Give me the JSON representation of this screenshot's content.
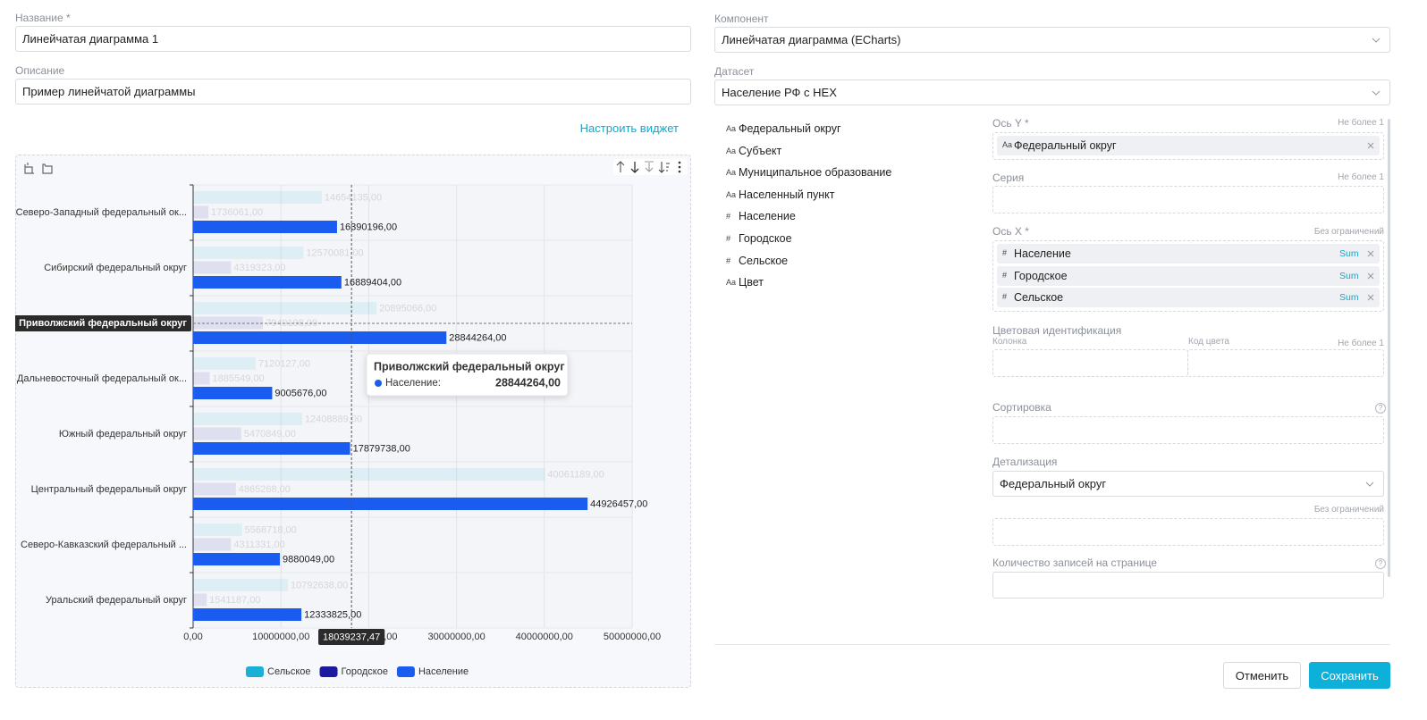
{
  "form": {
    "name_label": "Название *",
    "name_value": "Линейчатая диаграмма 1",
    "description_label": "Описание",
    "description_value": "Пример линейчатой диаграммы",
    "configure_link": "Настроить виджет"
  },
  "chart_data": {
    "type": "bar",
    "orientation": "horizontal",
    "categories": [
      "Северо-Западный федеральный ок...",
      "Сибирский федеральный округ",
      "Приволжский федеральный округ",
      "Дальневосточный федеральный ок...",
      "Южный федеральный округ",
      "Центральный федеральный округ",
      "Северо-Кавказский федеральный ...",
      "Уральский федеральный округ"
    ],
    "series": [
      {
        "name": "Сельское",
        "color": "#1ab0d6",
        "values": [
          14654135,
          12570081,
          20895066,
          7120127,
          12408889,
          40061189,
          5568718,
          10792638
        ],
        "value_labels": [
          "14654135,00",
          "12570081,00",
          "20895066,00",
          "7120127,00",
          "12408889,00",
          "40061189,00",
          "5568718,00",
          "10792638,00"
        ]
      },
      {
        "name": "Городское",
        "color": "#1c1a9c",
        "values": [
          1736061,
          4319323,
          7949198,
          1885549,
          5470849,
          4865268,
          4311331,
          1541187
        ],
        "value_labels": [
          "1736061,00",
          "4319323,00",
          "7949198,00",
          "1885549,00",
          "5470849,00",
          "4865268,00",
          "4311331,00",
          "1541187,00"
        ]
      },
      {
        "name": "Население",
        "color": "#1a5cf0",
        "values": [
          16390196,
          16889404,
          28844264,
          9005676,
          17879738,
          44926457,
          9880049,
          12333825
        ],
        "value_labels": [
          "16390196,00",
          "16889404,00",
          "28844264,00",
          "9005676,00",
          "17879738,00",
          "44926457,00",
          "9880049,00",
          "12333825,00"
        ]
      }
    ],
    "xlim": [
      0,
      50000000
    ],
    "xticks": [
      {
        "value": 0,
        "label": "0,00"
      },
      {
        "value": 10000000,
        "label": "10000000,00"
      },
      {
        "value": 20000000,
        "label": "20000000,00"
      },
      {
        "value": 30000000,
        "label": "30000000,00"
      },
      {
        "value": 40000000,
        "label": "40000000,00"
      },
      {
        "value": 50000000,
        "label": "50000000,00"
      }
    ],
    "grid": true,
    "legend": "bottom",
    "focus": {
      "category": 2,
      "series": 2
    },
    "tooltip": {
      "title": "Приволжский федеральный округ",
      "label": "Население:",
      "value": "28844264,00"
    },
    "axis_pointer": {
      "value": 18039237.47,
      "label": "18039237,47"
    }
  },
  "settings": {
    "component_label": "Компонент",
    "component_value": "Линейчатая диаграмма (ECharts)",
    "dataset_label": "Датасет",
    "dataset_value": "Население РФ с HEX",
    "fields": [
      {
        "icon": "Aa",
        "name": "Федеральный округ"
      },
      {
        "icon": "Aa",
        "name": "Субъект"
      },
      {
        "icon": "Aa",
        "name": "Муниципальное образование"
      },
      {
        "icon": "Aa",
        "name": "Населенный пункт"
      },
      {
        "icon": "#",
        "name": "Население"
      },
      {
        "icon": "#",
        "name": "Городское"
      },
      {
        "icon": "#",
        "name": "Сельское"
      },
      {
        "icon": "Aa",
        "name": "Цвет"
      }
    ],
    "y_axis": {
      "label": "Ось Y *",
      "hint": "Не более 1",
      "items": [
        {
          "icon": "Aa",
          "name": "Федеральный округ"
        }
      ]
    },
    "series": {
      "label": "Серия",
      "hint": "Не более 1"
    },
    "x_axis": {
      "label": "Ось X *",
      "hint": "Без ограничений",
      "items": [
        {
          "icon": "#",
          "name": "Население",
          "agg": "Sum"
        },
        {
          "icon": "#",
          "name": "Городское",
          "agg": "Sum"
        },
        {
          "icon": "#",
          "name": "Сельское",
          "agg": "Sum"
        }
      ]
    },
    "color_id": {
      "label": "Цветовая идентификация",
      "column_label": "Колонка",
      "code_label": "Код цвета",
      "hint": "Не более 1"
    },
    "sorting": {
      "label": "Сортировка",
      "help": "?"
    },
    "detail": {
      "label": "Детализация",
      "value": "Федеральный округ",
      "hint": "Без ограничений"
    },
    "page_size": {
      "label": "Количество записей на странице",
      "help": "?"
    }
  },
  "buttons": {
    "cancel": "Отменить",
    "save": "Сохранить"
  }
}
